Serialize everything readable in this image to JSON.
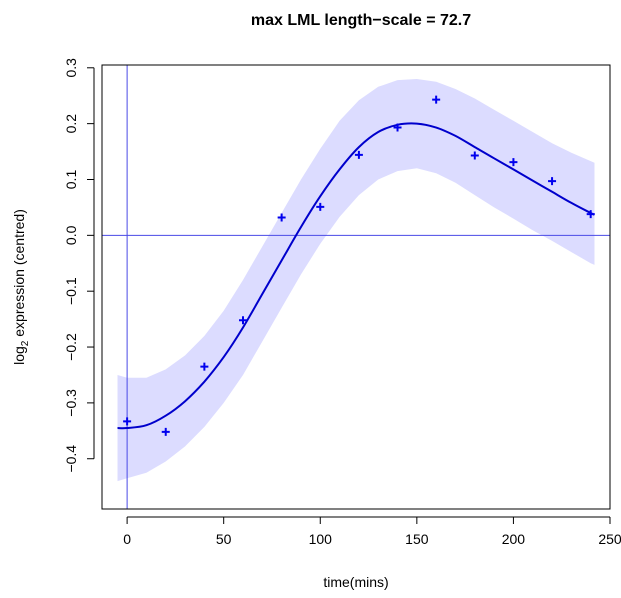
{
  "chart_data": {
    "type": "line",
    "title": "max LML length−scale = 72.7",
    "xlabel": "time(mins)",
    "ylabel_main": "log",
    "ylabel_sub": "2",
    "ylabel_rest": " expression (centred)",
    "xlim": [
      -13,
      250
    ],
    "ylim": [
      -0.49,
      0.305
    ],
    "xticks": [
      0,
      50,
      100,
      150,
      200,
      250
    ],
    "xtick_labels": [
      "0",
      "50",
      "100",
      "150",
      "200",
      "250"
    ],
    "yticks": [
      -0.4,
      -0.3,
      -0.2,
      -0.1,
      0.0,
      0.1,
      0.2,
      0.3
    ],
    "ytick_labels": [
      "−0.4",
      "−0.3",
      "−0.2",
      "−0.1",
      "0.0",
      "0.1",
      "0.2",
      "0.3"
    ],
    "reference_lines": {
      "vertical_x": 0,
      "horizontal_y": 0
    },
    "points": {
      "x": [
        0,
        20,
        40,
        60,
        80,
        100,
        120,
        140,
        160,
        180,
        200,
        220,
        240
      ],
      "y": [
        -0.333,
        -0.352,
        -0.235,
        -0.152,
        0.032,
        0.051,
        0.144,
        0.193,
        0.243,
        0.143,
        0.131,
        0.097,
        0.038
      ]
    },
    "mean_curve": {
      "x": [
        -5,
        0,
        10,
        20,
        30,
        40,
        50,
        60,
        70,
        80,
        90,
        100,
        110,
        120,
        130,
        140,
        150,
        160,
        170,
        180,
        190,
        200,
        210,
        220,
        230,
        240,
        242
      ],
      "y": [
        -0.345,
        -0.345,
        -0.34,
        -0.323,
        -0.297,
        -0.262,
        -0.218,
        -0.165,
        -0.105,
        -0.045,
        0.015,
        0.07,
        0.118,
        0.158,
        0.185,
        0.198,
        0.2,
        0.193,
        0.178,
        0.158,
        0.138,
        0.118,
        0.098,
        0.078,
        0.058,
        0.04,
        0.037
      ]
    },
    "band_upper": {
      "x": [
        -5,
        0,
        10,
        20,
        30,
        40,
        50,
        60,
        70,
        80,
        90,
        100,
        110,
        120,
        130,
        140,
        150,
        160,
        170,
        180,
        190,
        200,
        210,
        220,
        230,
        240,
        242
      ],
      "y": [
        -0.25,
        -0.255,
        -0.255,
        -0.24,
        -0.215,
        -0.18,
        -0.135,
        -0.08,
        -0.02,
        0.04,
        0.1,
        0.155,
        0.205,
        0.242,
        0.266,
        0.278,
        0.28,
        0.275,
        0.262,
        0.245,
        0.225,
        0.205,
        0.185,
        0.165,
        0.148,
        0.133,
        0.13
      ]
    },
    "band_lower": {
      "x": [
        -5,
        0,
        10,
        20,
        30,
        40,
        50,
        60,
        70,
        80,
        90,
        100,
        110,
        120,
        130,
        140,
        150,
        160,
        170,
        180,
        190,
        200,
        210,
        220,
        230,
        240,
        242
      ],
      "y": [
        -0.44,
        -0.435,
        -0.425,
        -0.405,
        -0.378,
        -0.343,
        -0.3,
        -0.25,
        -0.19,
        -0.13,
        -0.07,
        -0.015,
        0.033,
        0.072,
        0.1,
        0.115,
        0.12,
        0.111,
        0.094,
        0.072,
        0.05,
        0.03,
        0.009,
        -0.01,
        -0.03,
        -0.05,
        -0.053
      ]
    },
    "colors": {
      "points": "#0000ee",
      "curve": "#0000cc",
      "band": "#dcdcff",
      "reference_lines": "#4a4ae6",
      "axis": "#000000"
    },
    "grid": false,
    "legend": "none"
  }
}
